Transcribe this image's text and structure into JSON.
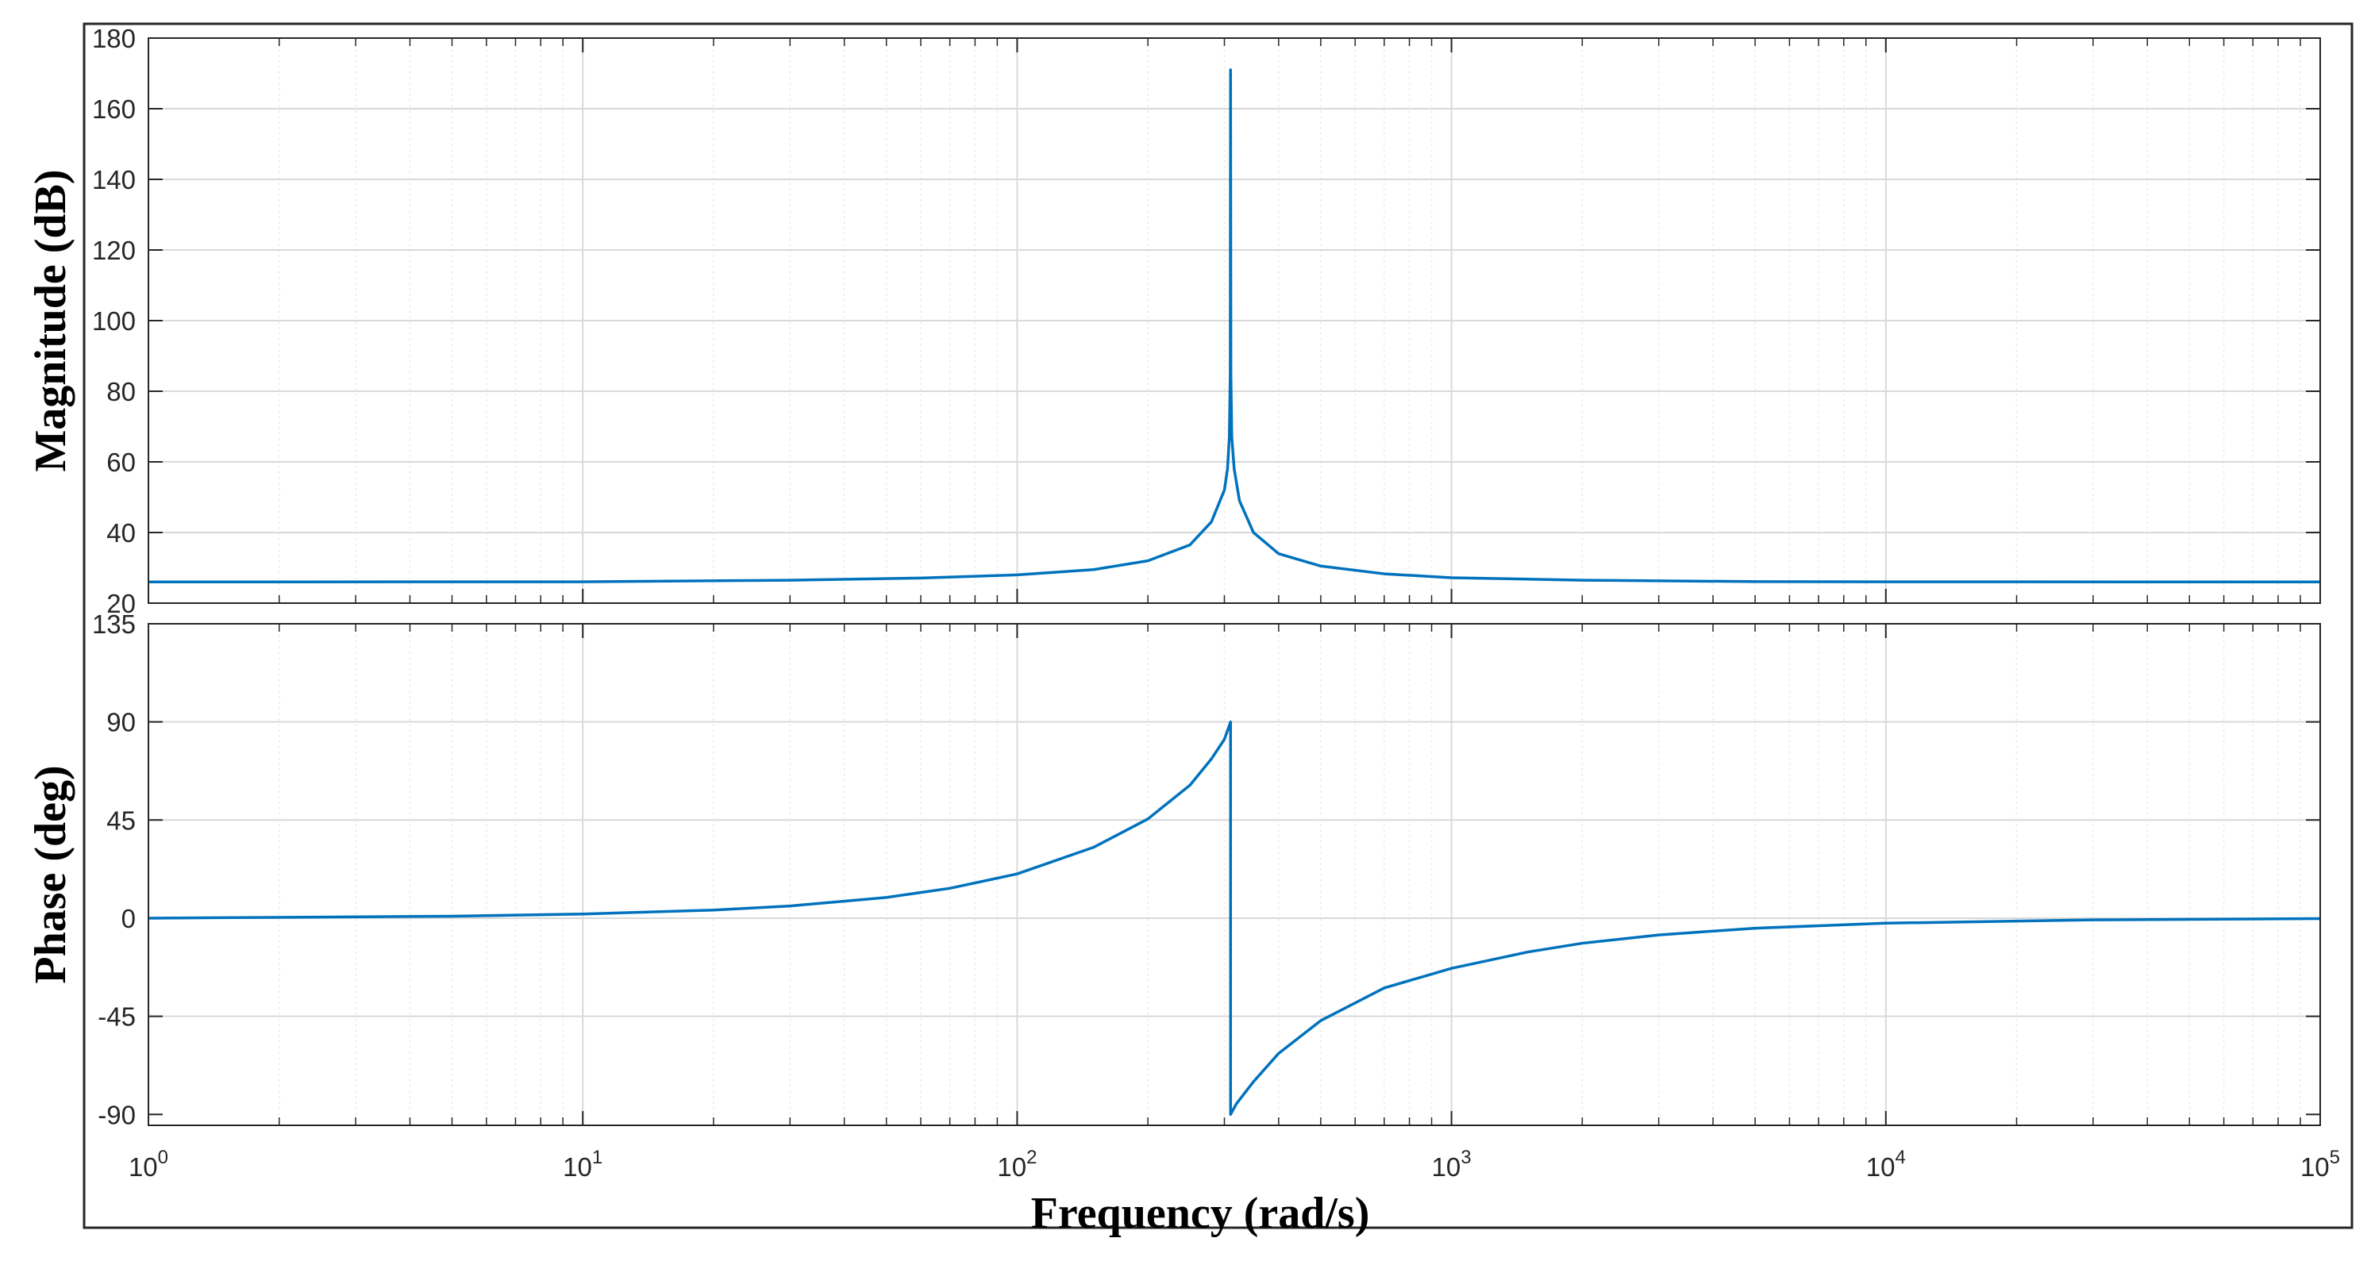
{
  "figure": {
    "xlabel": "Frequency (rad/s)",
    "x_scale": "log",
    "x_base": "10",
    "grid": true,
    "minor_grid": true,
    "line_color": "#0072BD"
  },
  "chart_data": [
    {
      "type": "line",
      "panel": "magnitude",
      "title": "",
      "ylabel": "Magnitude (dB)",
      "xlim": [
        1,
        100000
      ],
      "ylim": [
        20,
        180
      ],
      "y_ticks": [
        20,
        40,
        60,
        80,
        100,
        120,
        140,
        160,
        180
      ],
      "x_tick_exponents": [
        "0",
        "1",
        "2",
        "3",
        "4",
        "5"
      ],
      "series": [
        {
          "x": [
            1,
            10,
            30,
            60,
            100,
            150,
            200,
            250,
            280,
            300,
            305,
            308,
            309.5,
            310,
            310.5,
            312,
            316,
            325,
            350,
            400,
            500,
            700,
            1000,
            2000,
            5000,
            10000,
            100000
          ],
          "y": [
            26,
            26.05,
            26.5,
            27.1,
            28,
            29.5,
            32,
            36.5,
            43,
            52,
            58,
            67,
            85,
            171,
            85,
            67,
            58,
            49,
            40,
            34,
            30.5,
            28.3,
            27.2,
            26.5,
            26.1,
            26.05,
            26
          ]
        }
      ]
    },
    {
      "type": "line",
      "panel": "phase",
      "title": "",
      "ylabel": "Phase (deg)",
      "xlim": [
        1,
        100000
      ],
      "ylim": [
        -95,
        135
      ],
      "y_ticks": [
        -90,
        -45,
        0,
        45,
        90,
        135
      ],
      "x_tick_exponents": [
        "0",
        "1",
        "2",
        "3",
        "4",
        "5"
      ],
      "series": [
        {
          "x": [
            1,
            5,
            10,
            20,
            30,
            50,
            70,
            100,
            150,
            200,
            250,
            280,
            300,
            310,
            310.01,
            320,
            350,
            400,
            500,
            700,
            1000,
            1500,
            2000,
            3000,
            5000,
            10000,
            30000,
            100000
          ],
          "y": [
            0,
            0.9,
            1.9,
            3.7,
            5.6,
            9.5,
            13.7,
            20.3,
            32.5,
            45.5,
            61,
            73,
            82,
            90,
            -90,
            -85,
            -75,
            -62,
            -47,
            -32,
            -23,
            -15.5,
            -11.5,
            -7.7,
            -4.6,
            -2.3,
            -0.8,
            -0.2
          ]
        }
      ]
    }
  ]
}
